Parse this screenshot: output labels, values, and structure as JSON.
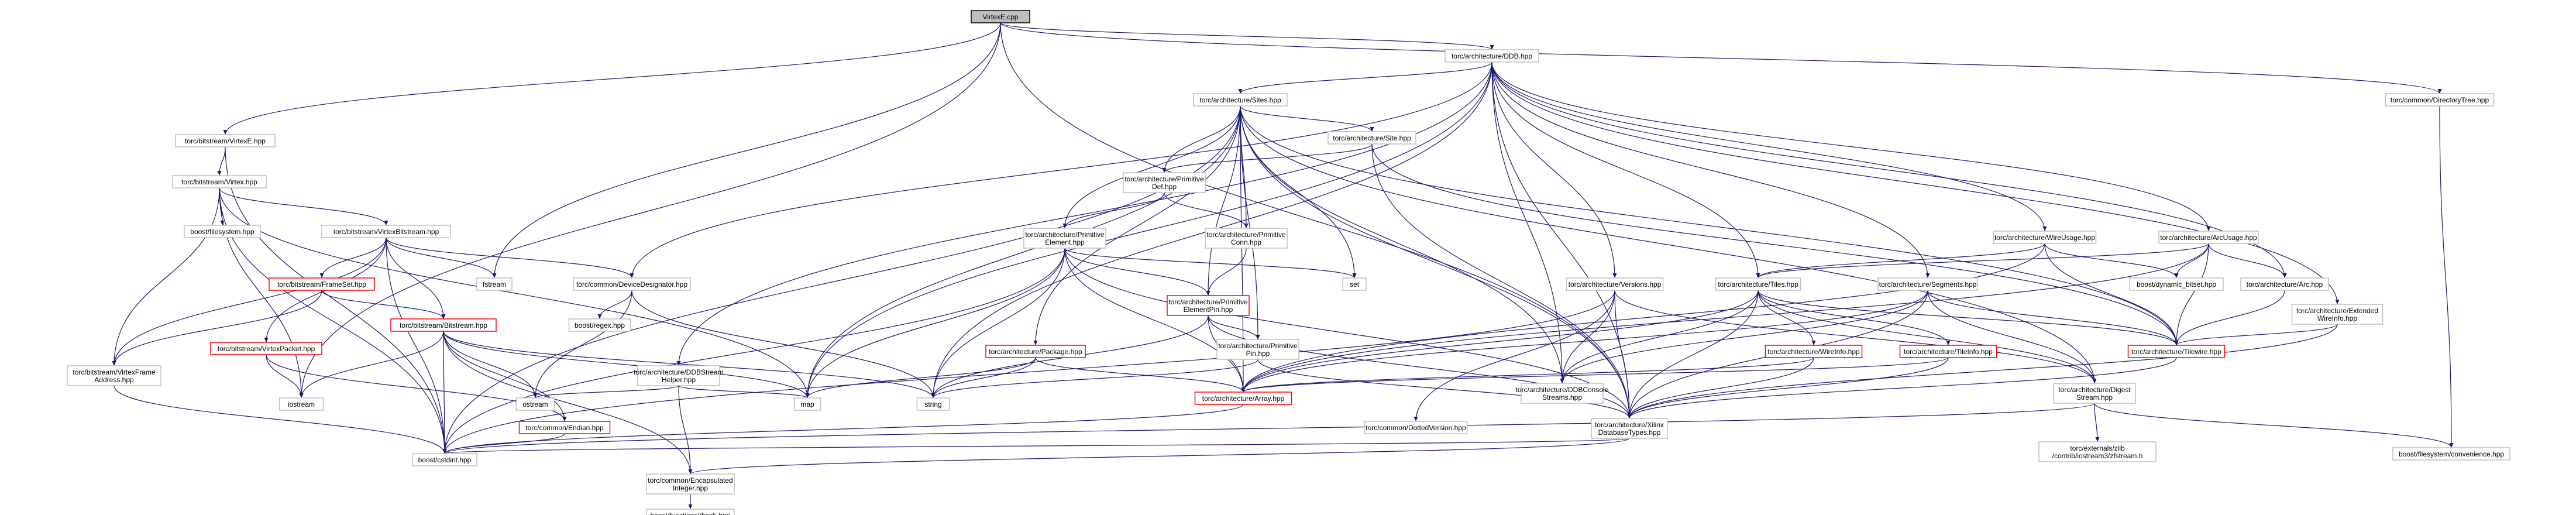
{
  "nodes": [
    {
      "id": "virtexe",
      "lines": [
        "VirtexE.cpp"
      ],
      "kind": "root"
    },
    {
      "id": "ddb",
      "lines": [
        "torc/architecture/DDB.hpp"
      ]
    },
    {
      "id": "dirtree",
      "lines": [
        "torc/common/DirectoryTree.hpp"
      ]
    },
    {
      "id": "virtexe_hpp",
      "lines": [
        "torc/bitstream/VirtexE.hpp"
      ]
    },
    {
      "id": "virtex_hpp",
      "lines": [
        "torc/bitstream/Virtex.hpp"
      ]
    },
    {
      "id": "sites",
      "lines": [
        "torc/architecture/Sites.hpp"
      ]
    },
    {
      "id": "site",
      "lines": [
        "torc/architecture/Site.hpp"
      ]
    },
    {
      "id": "primdef",
      "lines": [
        "torc/architecture/Primitive",
        "Def.hpp"
      ]
    },
    {
      "id": "primconn",
      "lines": [
        "torc/architecture/Primitive",
        "Conn.hpp"
      ]
    },
    {
      "id": "primelem",
      "lines": [
        "torc/architecture/Primitive",
        "Element.hpp"
      ]
    },
    {
      "id": "primelempin",
      "lines": [
        "torc/architecture/Primitive",
        "ElementPin.hpp"
      ],
      "kind": "red"
    },
    {
      "id": "primpin",
      "lines": [
        "torc/architecture/Primitive",
        "Pin.hpp"
      ]
    },
    {
      "id": "package",
      "lines": [
        "torc/architecture/Package.hpp"
      ],
      "kind": "red"
    },
    {
      "id": "array",
      "lines": [
        "torc/architecture/Array.hpp"
      ],
      "kind": "red"
    },
    {
      "id": "xdbtypes",
      "lines": [
        "torc/architecture/Xilinx",
        "DatabaseTypes.hpp"
      ]
    },
    {
      "id": "boost_cstdint",
      "lines": [
        "boost/cstdint.hpp"
      ]
    },
    {
      "id": "encint",
      "lines": [
        "torc/common/Encapsulated",
        "Integer.hpp"
      ]
    },
    {
      "id": "boost_hash",
      "lines": [
        "boost/functional/hash.hpp"
      ]
    },
    {
      "id": "vbitstream",
      "lines": [
        "torc/bitstream/VirtexBitstream.hpp"
      ]
    },
    {
      "id": "frameset",
      "lines": [
        "torc/bitstream/FrameSet.hpp"
      ],
      "kind": "red"
    },
    {
      "id": "bitstream",
      "lines": [
        "torc/bitstream/Bitstream.hpp"
      ],
      "kind": "red"
    },
    {
      "id": "vpacket",
      "lines": [
        "torc/bitstream/VirtexPacket.hpp"
      ],
      "kind": "red"
    },
    {
      "id": "vframeaddr",
      "lines": [
        "torc/bitstream/VirtexFrame",
        "Address.hpp"
      ]
    },
    {
      "id": "endian",
      "lines": [
        "torc/common/Endian.hpp"
      ],
      "kind": "red"
    },
    {
      "id": "devdesig",
      "lines": [
        "torc/common/DeviceDesignator.hpp"
      ]
    },
    {
      "id": "boost_regex",
      "lines": [
        "boost/regex.hpp"
      ]
    },
    {
      "id": "boost_fs",
      "lines": [
        "boost/filesystem.hpp"
      ]
    },
    {
      "id": "ddbstream",
      "lines": [
        "torc/architecture/DDBStream",
        "Helper.hpp"
      ]
    },
    {
      "id": "iostream",
      "lines": [
        "iostream"
      ]
    },
    {
      "id": "ostream",
      "lines": [
        "ostream"
      ]
    },
    {
      "id": "fstream",
      "lines": [
        "fstream"
      ]
    },
    {
      "id": "map",
      "lines": [
        "map"
      ]
    },
    {
      "id": "string",
      "lines": [
        "string"
      ]
    },
    {
      "id": "set",
      "lines": [
        "set"
      ]
    },
    {
      "id": "versions",
      "lines": [
        "torc/architecture/Versions.hpp"
      ]
    },
    {
      "id": "ddbconsole",
      "lines": [
        "torc/architecture/DDBConsole",
        "Streams.hpp"
      ]
    },
    {
      "id": "dottedver",
      "lines": [
        "torc/common/DottedVersion.hpp"
      ]
    },
    {
      "id": "tiles",
      "lines": [
        "torc/architecture/Tiles.hpp"
      ]
    },
    {
      "id": "wireinfo",
      "lines": [
        "torc/architecture/WireInfo.hpp"
      ],
      "kind": "red"
    },
    {
      "id": "tileinfo",
      "lines": [
        "torc/architecture/TileInfo.hpp"
      ],
      "kind": "red"
    },
    {
      "id": "segments",
      "lines": [
        "torc/architecture/Segments.hpp"
      ]
    },
    {
      "id": "digest",
      "lines": [
        "torc/architecture/Digest",
        "Stream.hpp"
      ]
    },
    {
      "id": "zfstream",
      "lines": [
        "torc/externals/zlib",
        "/contrib/iostream3/zfstream.h"
      ]
    },
    {
      "id": "tilewire",
      "lines": [
        "torc/architecture/Tilewire.hpp"
      ],
      "kind": "red"
    },
    {
      "id": "wireusage",
      "lines": [
        "torc/architecture/WireUsage.hpp"
      ]
    },
    {
      "id": "arcusage",
      "lines": [
        "torc/architecture/ArcUsage.hpp"
      ]
    },
    {
      "id": "dynbitset",
      "lines": [
        "boost/dynamic_bitset.hpp"
      ]
    },
    {
      "id": "arc",
      "lines": [
        "torc/architecture/Arc.hpp"
      ]
    },
    {
      "id": "extwireinfo",
      "lines": [
        "torc/architecture/Extended",
        "WireInfo.hpp"
      ]
    },
    {
      "id": "fsconv",
      "lines": [
        "boost/filesystem/convenience.hpp"
      ]
    }
  ]
}
